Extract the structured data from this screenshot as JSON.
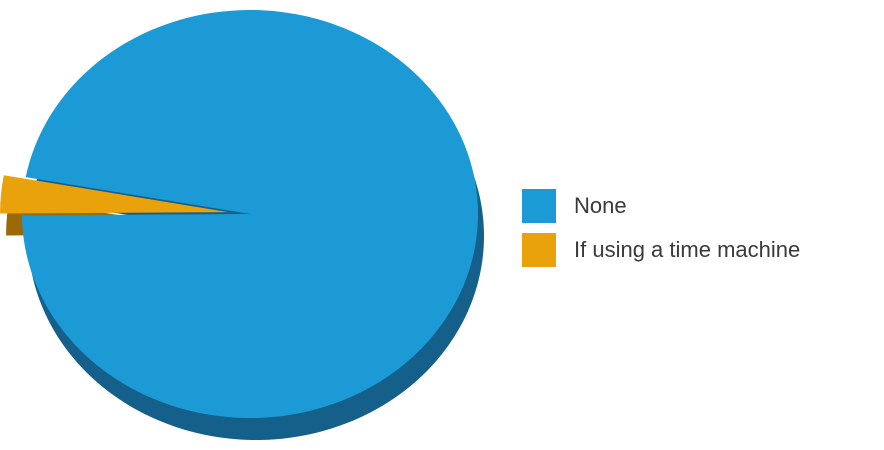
{
  "chart_data": {
    "type": "pie",
    "title": "",
    "categories": [
      "None",
      "If using a time machine"
    ],
    "values": [
      97,
      3
    ],
    "colors": [
      "#1b9ad6",
      "#eaa20c"
    ],
    "shadow_colors": [
      "#14608a",
      "#9a6a08"
    ],
    "exploded": [
      false,
      true
    ],
    "three_d": true,
    "legend_position": "right"
  }
}
